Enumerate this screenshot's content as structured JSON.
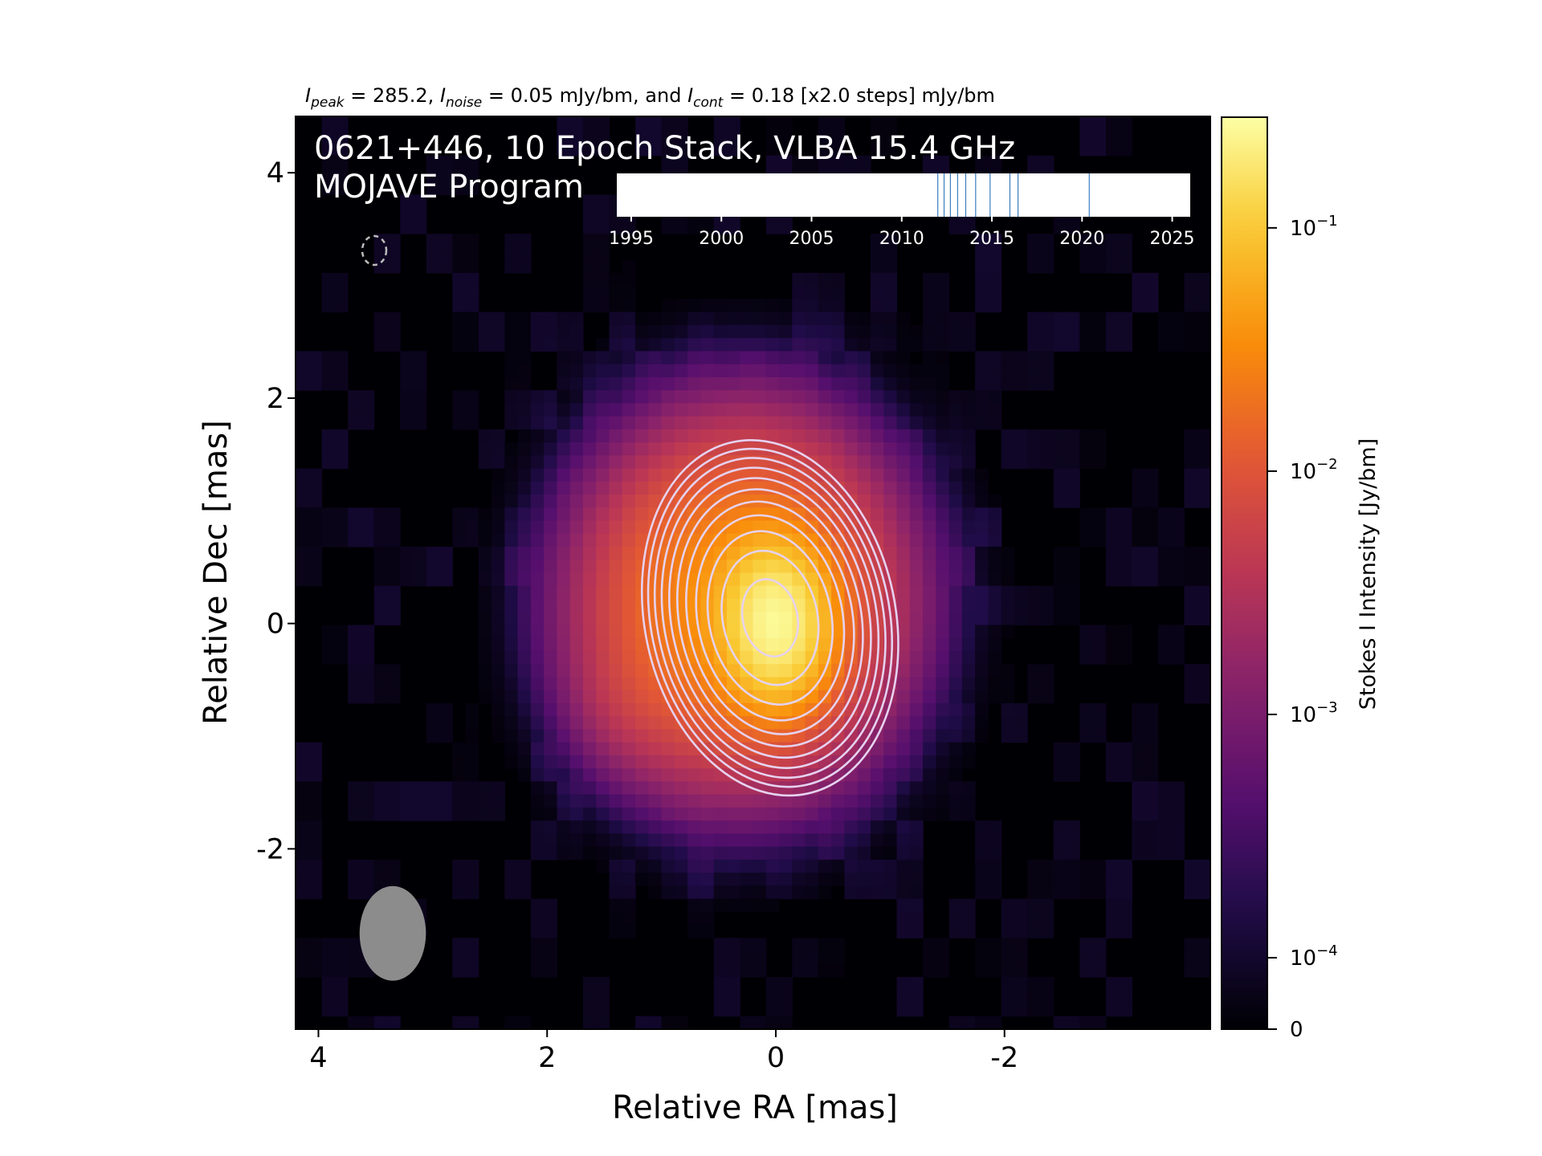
{
  "figure": {
    "header_parts": [
      "I",
      "peak",
      " = 285.2, ",
      "I",
      "noise",
      " = 0.05 mJy/bm, and ",
      "I",
      "cont",
      " = 0.18 [x2.0 steps] mJy/bm"
    ],
    "title_line1": "0621+446, 10 Epoch Stack, VLBA 15.4 GHz",
    "title_line2": "MOJAVE Program"
  },
  "chart_data": [
    {
      "type": "heatmap",
      "xlabel": "Relative RA [mas]",
      "ylabel": "Relative Dec [mas]",
      "x_ticks": [
        "4",
        "2",
        "0",
        "-2"
      ],
      "y_ticks": [
        "4",
        "2",
        "0",
        "-2"
      ],
      "x_tick_values": [
        4,
        2,
        0,
        -2
      ],
      "y_tick_values": [
        4,
        2,
        0,
        -2
      ],
      "xlim": [
        4.2,
        -3.8
      ],
      "ylim": [
        -3.6,
        4.5
      ],
      "x_inverted": true,
      "colormap": "inferno",
      "colors": {
        "background": "#000004",
        "contour": "#e6d2f0",
        "beam": "#8c8c8c"
      },
      "contour_levels_mjy": [
        0.18,
        0.36,
        0.72,
        1.44,
        2.88,
        5.76,
        11.52,
        23.04,
        46.08,
        92.16,
        184.32
      ],
      "peak_mjy": 285.2,
      "noise_mjy": 0.05,
      "components": [
        {
          "ra": 0.0,
          "dec": 0.0,
          "sigma_ra": 0.25,
          "sigma_dec": 0.38,
          "peak_jy": 0.22
        },
        {
          "ra": 0.3,
          "dec": 0.2,
          "sigma_ra": 0.6,
          "sigma_dec": 0.7,
          "peak_jy": 0.04
        },
        {
          "ra": 1.3,
          "dec": -0.7,
          "sigma_ra": 0.28,
          "sigma_dec": 0.35,
          "peak_jy": 0.0012
        },
        {
          "ra": 0.9,
          "dec": -0.35,
          "sigma_ra": 0.45,
          "sigma_dec": 0.5,
          "peak_jy": 0.0015
        }
      ],
      "beam": {
        "ra": 3.35,
        "dec": -2.75,
        "major_mas": 0.84,
        "minor_mas": 0.58,
        "pa_deg": 0
      }
    },
    {
      "type": "scatter",
      "name": "epoch-timeline",
      "x_ticks": [
        "1995",
        "2000",
        "2005",
        "2010",
        "2015",
        "2020",
        "2025"
      ],
      "x_tick_values": [
        1995,
        2000,
        2005,
        2010,
        2015,
        2020,
        2025
      ],
      "xlim": [
        1994.2,
        2026.0
      ],
      "epochs": [
        2012.0,
        2012.35,
        2012.7,
        2013.1,
        2013.55,
        2014.1,
        2014.9,
        2016.0,
        2016.45,
        2020.4
      ]
    },
    {
      "type": "colorbar",
      "label": "Stokes I Intensity [Jy/bm]",
      "colormap": "inferno",
      "ticks": [
        {
          "mantissa": "10",
          "exp": "−1",
          "value": 0.1
        },
        {
          "mantissa": "10",
          "exp": "−2",
          "value": 0.01
        },
        {
          "mantissa": "10",
          "exp": "−3",
          "value": 0.001
        },
        {
          "mantissa": "10",
          "exp": "−4",
          "value": 0.0001
        },
        {
          "mantissa": "0",
          "exp": "",
          "value": 0
        }
      ],
      "range_jy": [
        0,
        0.285
      ]
    }
  ]
}
